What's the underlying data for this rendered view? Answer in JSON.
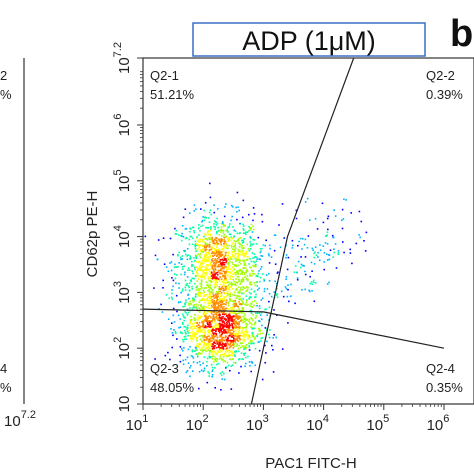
{
  "panel_letter": "b",
  "left_panel_fragments": {
    "q_top_label": "2",
    "q_top_pct": "%",
    "q_bottom_label": "4",
    "q_bottom_pct": "%",
    "x_tick_last": "10",
    "x_tick_last_exp": "7.2"
  },
  "chart_data": {
    "type": "scatter",
    "title": "ADP (1μM)",
    "xlabel": "PAC1 FITC-H",
    "ylabel": "CD62p PE-H",
    "x_scale": "log",
    "y_scale": "log",
    "xlim": [
      10,
      1000000
    ],
    "ylim": [
      10,
      15848932
    ],
    "x_ticks": [
      {
        "base": "10",
        "exp": "1",
        "value": 10
      },
      {
        "base": "10",
        "exp": "2",
        "value": 100
      },
      {
        "base": "10",
        "exp": "3",
        "value": 1000
      },
      {
        "base": "10",
        "exp": "4",
        "value": 10000
      },
      {
        "base": "10",
        "exp": "5",
        "value": 100000
      },
      {
        "base": "10",
        "exp": "6",
        "value": 1000000
      }
    ],
    "y_ticks": [
      {
        "base": "10",
        "exp": "",
        "value": 10
      },
      {
        "base": "10",
        "exp": "2",
        "value": 100
      },
      {
        "base": "10",
        "exp": "3",
        "value": 1000
      },
      {
        "base": "10",
        "exp": "4",
        "value": 10000
      },
      {
        "base": "10",
        "exp": "5",
        "value": 100000
      },
      {
        "base": "10",
        "exp": "6",
        "value": 1000000
      },
      {
        "base": "10",
        "exp": "7.2",
        "value": 15848932
      }
    ],
    "quadrants": [
      {
        "label": "Q2-1",
        "percent": "51.21%",
        "position": "top-left"
      },
      {
        "label": "Q2-2",
        "percent": "0.39%",
        "position": "top-right"
      },
      {
        "label": "Q2-3",
        "percent": "48.05%",
        "position": "bottom-left"
      },
      {
        "label": "Q2-4",
        "percent": "0.35%",
        "position": "bottom-right"
      }
    ],
    "gates": {
      "vertical": [
        [
          631,
          10
        ],
        [
          2512,
          10000
        ],
        [
          31623,
          15848932
        ]
      ],
      "horizontal": [
        [
          10,
          501
        ],
        [
          1000,
          447
        ],
        [
          1000000,
          100
        ]
      ]
    },
    "clusters": [
      {
        "x": 178,
        "y": 3162,
        "sx": 0.22,
        "sy": 0.28,
        "weight": 0.5
      },
      {
        "x": 178,
        "y": 224,
        "sx": 0.2,
        "sy": 0.22,
        "weight": 0.5
      }
    ],
    "colors": {
      "density": [
        "#0000ff",
        "#00b4ff",
        "#00ffa0",
        "#a0ff00",
        "#ffff00",
        "#ff8c00",
        "#ff0000"
      ],
      "gate_line": "#222222",
      "title_border": "#3a6fc4"
    },
    "grid": false,
    "legend": "none"
  }
}
